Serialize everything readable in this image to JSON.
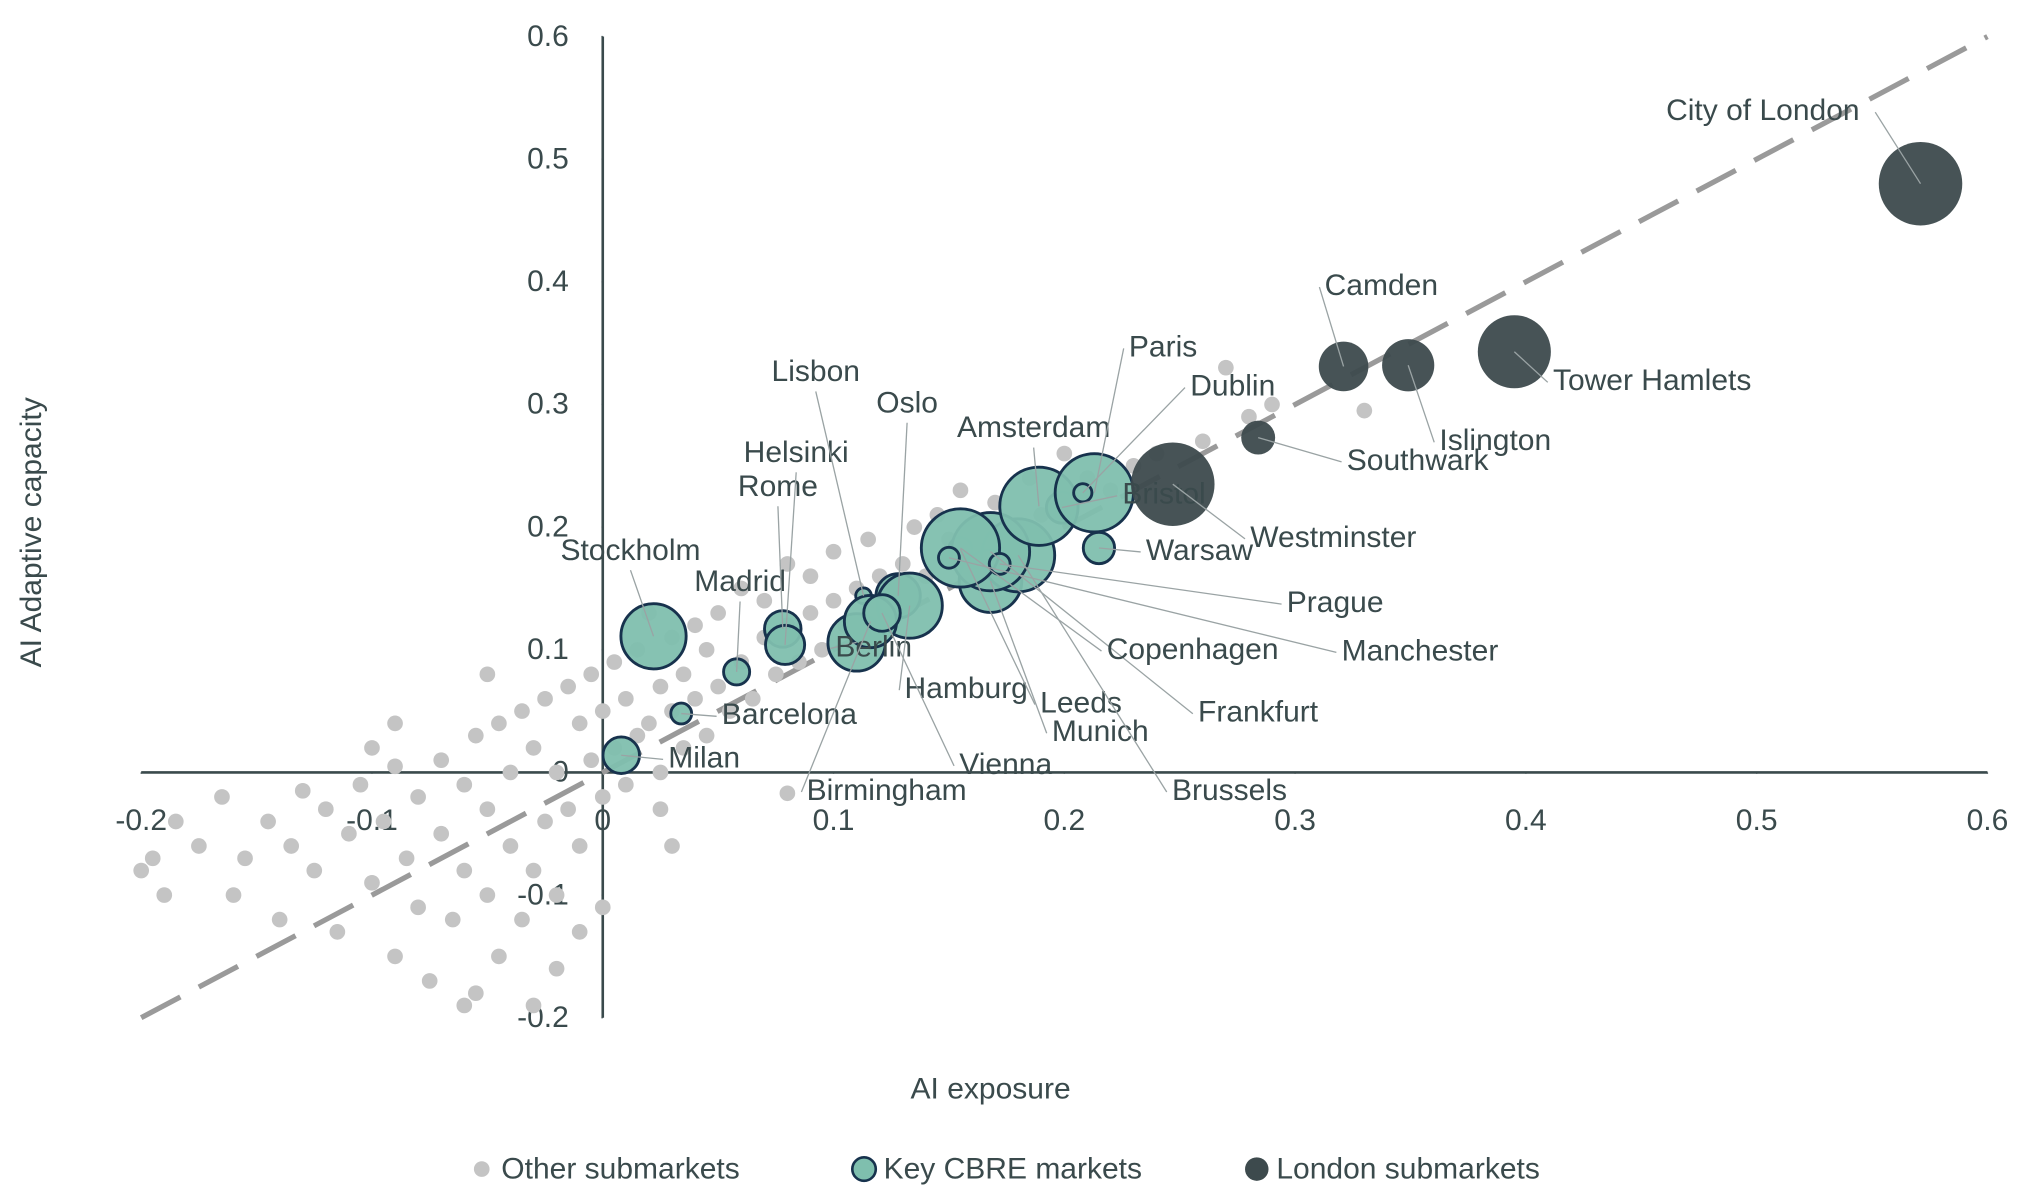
{
  "chart_data": {
    "type": "bubble",
    "x_label": "AI exposure",
    "y_label": "AI Adaptive capacity",
    "xlim": [
      -0.2,
      0.6
    ],
    "ylim": [
      -0.2,
      0.6
    ],
    "xticks": [
      -0.2,
      -0.1,
      0,
      0.1,
      0.2,
      0.3,
      0.4,
      0.5,
      0.6
    ],
    "yticks": [
      -0.2,
      -0.1,
      0,
      0.1,
      0.2,
      0.3,
      0.4,
      0.5,
      0.6
    ],
    "grid": false,
    "legend": "bottom",
    "series": [
      {
        "name": "Other submarkets",
        "color": "#c4c4c4",
        "x": [
          -0.2,
          -0.195,
          -0.19,
          -0.185,
          -0.175,
          -0.165,
          -0.16,
          -0.155,
          -0.145,
          -0.14,
          -0.135,
          -0.13,
          -0.125,
          -0.12,
          -0.115,
          -0.11,
          -0.105,
          -0.1,
          -0.1,
          -0.095,
          -0.09,
          -0.09,
          -0.085,
          -0.08,
          -0.08,
          -0.075,
          -0.07,
          -0.07,
          -0.065,
          -0.06,
          -0.06,
          -0.055,
          -0.055,
          -0.05,
          -0.05,
          -0.045,
          -0.045,
          -0.04,
          -0.04,
          -0.035,
          -0.035,
          -0.03,
          -0.03,
          -0.025,
          -0.025,
          -0.02,
          -0.02,
          -0.015,
          -0.015,
          -0.01,
          -0.01,
          -0.005,
          -0.005,
          0,
          0,
          0.005,
          0.005,
          0.01,
          0.01,
          0.015,
          0.015,
          0.02,
          0.02,
          0.025,
          0.025,
          0.03,
          0.03,
          0.035,
          0.035,
          0.04,
          0.04,
          0.045,
          0.045,
          0.05,
          0.05,
          0.055,
          0.06,
          0.06,
          0.065,
          0.07,
          0.07,
          0.075,
          0.08,
          0.08,
          0.085,
          0.09,
          0.09,
          0.095,
          0.1,
          0.1,
          0.105,
          0.11,
          0.115,
          0.12,
          0.125,
          0.13,
          0.135,
          0.14,
          0.145,
          0.15,
          0.155,
          0.16,
          0.17,
          0.175,
          0.185,
          0.19,
          0.2,
          0.21,
          0.22,
          0.23,
          0.24,
          0.26,
          0.27,
          0.28,
          0.29,
          0.33,
          -0.06,
          -0.03,
          0,
          0.03,
          0.025,
          0.08,
          -0.01,
          -0.05,
          -0.02,
          -0.09
        ],
        "y": [
          -0.08,
          -0.07,
          -0.1,
          -0.04,
          -0.06,
          -0.02,
          -0.1,
          -0.07,
          -0.04,
          -0.12,
          -0.06,
          -0.015,
          -0.08,
          -0.03,
          -0.13,
          -0.05,
          -0.01,
          -0.09,
          0.02,
          -0.04,
          -0.15,
          0.005,
          -0.07,
          -0.11,
          -0.02,
          -0.17,
          -0.05,
          0.01,
          -0.12,
          -0.08,
          -0.01,
          -0.18,
          0.03,
          -0.1,
          -0.03,
          -0.15,
          0.04,
          -0.06,
          0,
          -0.12,
          0.05,
          -0.08,
          0.02,
          -0.04,
          0.06,
          -0.1,
          0,
          -0.03,
          0.07,
          -0.06,
          0.04,
          0.01,
          0.08,
          -0.02,
          0.05,
          0.02,
          0.09,
          -0.01,
          0.06,
          0.03,
          0.1,
          0.04,
          0.13,
          0,
          0.07,
          0.05,
          0.11,
          0.02,
          0.08,
          0.06,
          0.12,
          0.03,
          0.1,
          0.07,
          0.13,
          0.05,
          0.09,
          0.15,
          0.06,
          0.11,
          0.14,
          0.08,
          0.12,
          0.17,
          0.09,
          0.13,
          0.16,
          0.1,
          0.14,
          0.18,
          0.12,
          0.15,
          0.19,
          0.16,
          0.13,
          0.17,
          0.2,
          0.16,
          0.21,
          0.19,
          0.23,
          0.2,
          0.22,
          0.19,
          0.24,
          0.21,
          0.26,
          0.24,
          0.23,
          0.25,
          0.26,
          0.27,
          0.33,
          0.29,
          0.3,
          0.295,
          -0.19,
          -0.19,
          -0.11,
          -0.06,
          -0.03,
          -0.017,
          -0.13,
          0.08,
          -0.16,
          0.04
        ]
      },
      {
        "name": "Key CBRE markets",
        "color": "#7fbfae",
        "edge": "#17324d",
        "labels": [
          "Stockholm",
          "Madrid",
          "Rome",
          "Helsinki",
          "Barcelona",
          "Milan",
          "Berlin",
          "Lisbon",
          "Oslo",
          "Hamburg",
          "Birmingham",
          "Vienna",
          "Leeds",
          "Munich",
          "Brussels",
          "Frankfurt",
          "Copenhagen",
          "Manchester",
          "Prague",
          "Warsaw",
          "Bristol",
          "Amsterdam",
          "Paris",
          "Dublin"
        ],
        "x": [
          0.022,
          0.058,
          0.078,
          0.079,
          0.034,
          0.008,
          0.11,
          0.113,
          0.128,
          0.133,
          0.116,
          0.121,
          0.155,
          0.168,
          0.18,
          0.168,
          0.155,
          0.15,
          0.172,
          0.215,
          0.199,
          0.189,
          0.213,
          0.208
        ],
        "y": [
          0.111,
          0.082,
          0.117,
          0.104,
          0.048,
          0.014,
          0.106,
          0.144,
          0.144,
          0.136,
          0.123,
          0.13,
          0.182,
          0.156,
          0.177,
          0.18,
          0.183,
          0.175,
          0.17,
          0.183,
          0.216,
          0.217,
          0.228,
          0.228
        ],
        "sizes": [
          25,
          10,
          14,
          15,
          8,
          14,
          22,
          6,
          17,
          25,
          20,
          14,
          9,
          24,
          28,
          30,
          30,
          8,
          8,
          12,
          12,
          30,
          30,
          7
        ]
      },
      {
        "name": "London submarkets",
        "color": "#3d4a4d",
        "labels": [
          "City of London",
          "Tower Hamlets",
          "Islington",
          "Camden",
          "Southwark",
          "Westminster"
        ],
        "x": [
          0.571,
          0.395,
          0.349,
          0.321,
          0.284,
          0.247
        ],
        "y": [
          0.48,
          0.343,
          0.332,
          0.331,
          0.273,
          0.235
        ],
        "sizes": [
          32,
          28,
          20,
          19,
          13,
          32
        ]
      }
    ]
  }
}
